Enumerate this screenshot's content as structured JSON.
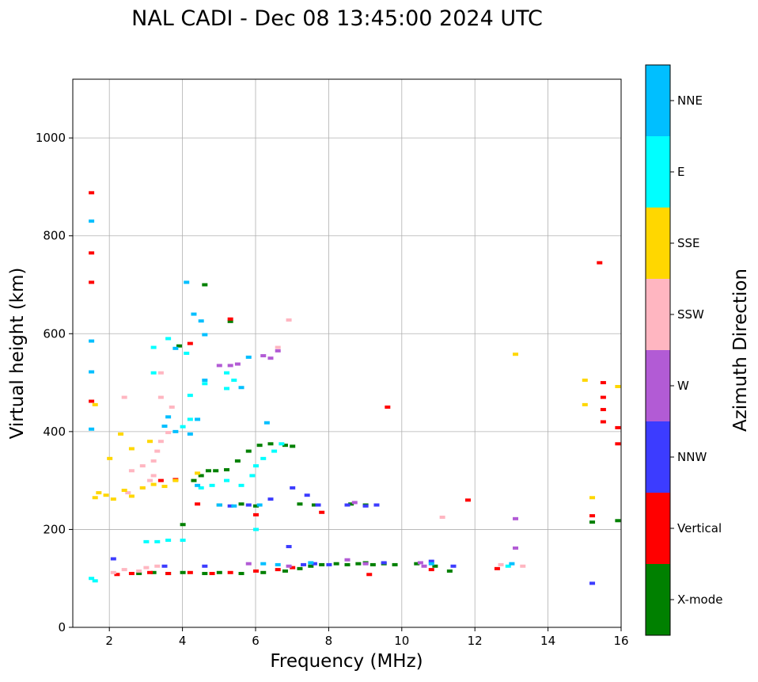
{
  "chart_data": {
    "type": "scatter",
    "title": "NAL CADI - Dec 08 13:45:00 2024 UTC",
    "xlabel": "Frequency (MHz)",
    "ylabel": "Virtual height (km)",
    "xlim": [
      1,
      16
    ],
    "ylim": [
      0,
      1120
    ],
    "xticks": [
      2,
      4,
      6,
      8,
      10,
      12,
      14,
      16
    ],
    "yticks": [
      0,
      200,
      400,
      600,
      800,
      1000
    ],
    "grid": true,
    "colorbar": {
      "label": "Azimuth Direction",
      "categories": [
        {
          "name": "X-mode",
          "color": "#008000"
        },
        {
          "name": "Vertical",
          "color": "#ff0000"
        },
        {
          "name": "NNW",
          "color": "#3c3cff"
        },
        {
          "name": "W",
          "color": "#b25bd5"
        },
        {
          "name": "SSW",
          "color": "#ffb6c1"
        },
        {
          "name": "SSE",
          "color": "#ffd700"
        },
        {
          "name": "E",
          "color": "#00ffff"
        },
        {
          "name": "NNE",
          "color": "#00bfff"
        }
      ]
    },
    "series": [
      {
        "name": "X-mode",
        "points": [
          [
            2.8,
            110
          ],
          [
            3.2,
            112
          ],
          [
            3.6,
            110
          ],
          [
            4.0,
            112
          ],
          [
            4.6,
            110
          ],
          [
            5.0,
            112
          ],
          [
            5.6,
            110
          ],
          [
            6.2,
            112
          ],
          [
            6.8,
            115
          ],
          [
            7.2,
            120
          ],
          [
            7.5,
            125
          ],
          [
            7.8,
            128
          ],
          [
            8.2,
            130
          ],
          [
            8.5,
            128
          ],
          [
            8.8,
            130
          ],
          [
            9.0,
            132
          ],
          [
            9.2,
            128
          ],
          [
            9.5,
            130
          ],
          [
            9.8,
            128
          ],
          [
            10.4,
            130
          ],
          [
            10.9,
            125
          ],
          [
            9.0,
            250
          ],
          [
            8.6,
            252
          ],
          [
            4.3,
            300
          ],
          [
            4.5,
            310
          ],
          [
            4.7,
            320
          ],
          [
            4.9,
            320
          ],
          [
            5.2,
            322
          ],
          [
            5.5,
            340
          ],
          [
            5.8,
            360
          ],
          [
            6.1,
            372
          ],
          [
            6.4,
            375
          ],
          [
            6.8,
            372
          ],
          [
            7.0,
            370
          ],
          [
            5.3,
            625
          ],
          [
            3.9,
            575
          ],
          [
            4.6,
            700
          ],
          [
            4.0,
            210
          ],
          [
            15.2,
            215
          ],
          [
            15.9,
            218
          ],
          [
            5.0,
            250
          ],
          [
            5.6,
            252
          ],
          [
            6.0,
            248
          ],
          [
            7.2,
            252
          ],
          [
            7.6,
            250
          ],
          [
            11.3,
            115
          ]
        ]
      },
      {
        "name": "Vertical",
        "points": [
          [
            1.5,
            888
          ],
          [
            1.5,
            765
          ],
          [
            1.5,
            705
          ],
          [
            1.5,
            462
          ],
          [
            2.2,
            108
          ],
          [
            2.6,
            110
          ],
          [
            3.1,
            112
          ],
          [
            3.6,
            110
          ],
          [
            4.2,
            112
          ],
          [
            4.8,
            110
          ],
          [
            5.3,
            112
          ],
          [
            6.0,
            115
          ],
          [
            6.6,
            118
          ],
          [
            7.0,
            122
          ],
          [
            9.1,
            108
          ],
          [
            10.8,
            118
          ],
          [
            12.6,
            120
          ],
          [
            15.2,
            228
          ],
          [
            15.5,
            500
          ],
          [
            15.5,
            470
          ],
          [
            15.5,
            445
          ],
          [
            15.5,
            420
          ],
          [
            15.4,
            745
          ],
          [
            15.9,
            408
          ],
          [
            15.9,
            375
          ],
          [
            11.8,
            260
          ],
          [
            9.6,
            450
          ],
          [
            5.3,
            630
          ],
          [
            4.2,
            580
          ],
          [
            3.8,
            302
          ],
          [
            3.4,
            300
          ],
          [
            6.0,
            230
          ],
          [
            7.8,
            235
          ],
          [
            4.4,
            252
          ]
        ]
      },
      {
        "name": "NNW",
        "points": [
          [
            7.3,
            128
          ],
          [
            7.6,
            130
          ],
          [
            8.0,
            128
          ],
          [
            9.5,
            132
          ],
          [
            10.8,
            135
          ],
          [
            11.4,
            125
          ],
          [
            7.0,
            285
          ],
          [
            7.4,
            270
          ],
          [
            7.7,
            250
          ],
          [
            8.5,
            250
          ],
          [
            9.0,
            248
          ],
          [
            9.3,
            250
          ],
          [
            6.4,
            262
          ],
          [
            5.8,
            250
          ],
          [
            5.3,
            248
          ],
          [
            6.9,
            165
          ],
          [
            15.2,
            90
          ],
          [
            3.5,
            125
          ],
          [
            4.6,
            125
          ],
          [
            2.1,
            140
          ]
        ]
      },
      {
        "name": "W",
        "points": [
          [
            5.0,
            535
          ],
          [
            5.3,
            535
          ],
          [
            5.5,
            538
          ],
          [
            6.4,
            550
          ],
          [
            6.6,
            565
          ],
          [
            6.2,
            555
          ],
          [
            6.9,
            125
          ],
          [
            8.5,
            138
          ],
          [
            9.0,
            130
          ],
          [
            10.5,
            132
          ],
          [
            13.1,
            222
          ],
          [
            13.1,
            162
          ],
          [
            8.7,
            255
          ],
          [
            10.6,
            125
          ],
          [
            5.8,
            130
          ]
        ]
      },
      {
        "name": "SSW",
        "points": [
          [
            2.1,
            112
          ],
          [
            2.4,
            118
          ],
          [
            2.8,
            115
          ],
          [
            3.0,
            122
          ],
          [
            3.3,
            125
          ],
          [
            2.5,
            275
          ],
          [
            2.9,
            285
          ],
          [
            3.1,
            300
          ],
          [
            3.2,
            340
          ],
          [
            3.3,
            360
          ],
          [
            3.4,
            380
          ],
          [
            3.6,
            398
          ],
          [
            3.4,
            470
          ],
          [
            3.4,
            520
          ],
          [
            3.7,
            450
          ],
          [
            2.6,
            320
          ],
          [
            2.9,
            330
          ],
          [
            3.2,
            310
          ],
          [
            6.9,
            628
          ],
          [
            11.1,
            225
          ],
          [
            12.7,
            128
          ],
          [
            13.3,
            125
          ],
          [
            2.4,
            470
          ],
          [
            6.6,
            572
          ]
        ]
      },
      {
        "name": "SSE",
        "points": [
          [
            1.6,
            265
          ],
          [
            1.7,
            275
          ],
          [
            1.9,
            270
          ],
          [
            2.1,
            262
          ],
          [
            2.4,
            280
          ],
          [
            2.6,
            268
          ],
          [
            2.9,
            285
          ],
          [
            3.2,
            292
          ],
          [
            3.5,
            288
          ],
          [
            3.8,
            300
          ],
          [
            2.3,
            395
          ],
          [
            2.6,
            365
          ],
          [
            3.1,
            380
          ],
          [
            2.0,
            345
          ],
          [
            15.2,
            265
          ],
          [
            15.0,
            505
          ],
          [
            15.0,
            455
          ],
          [
            15.9,
            492
          ],
          [
            13.1,
            558
          ],
          [
            1.6,
            455
          ],
          [
            4.4,
            315
          ]
        ]
      },
      {
        "name": "E",
        "points": [
          [
            3.0,
            175
          ],
          [
            3.3,
            175
          ],
          [
            3.6,
            178
          ],
          [
            4.0,
            178
          ],
          [
            3.2,
            572
          ],
          [
            3.6,
            590
          ],
          [
            4.1,
            560
          ],
          [
            4.2,
            474
          ],
          [
            4.6,
            498
          ],
          [
            5.2,
            488
          ],
          [
            5.4,
            505
          ],
          [
            4.0,
            410
          ],
          [
            4.2,
            425
          ],
          [
            5.6,
            290
          ],
          [
            5.9,
            310
          ],
          [
            6.0,
            330
          ],
          [
            6.2,
            345
          ],
          [
            5.2,
            300
          ],
          [
            4.8,
            290
          ],
          [
            6.5,
            360
          ],
          [
            6.7,
            375
          ],
          [
            12.9,
            125
          ],
          [
            4.5,
            285
          ],
          [
            6.0,
            200
          ],
          [
            5.2,
            520
          ],
          [
            3.2,
            520
          ],
          [
            1.5,
            100
          ],
          [
            1.6,
            95
          ]
        ]
      },
      {
        "name": "NNE",
        "points": [
          [
            1.5,
            585
          ],
          [
            1.5,
            522
          ],
          [
            1.5,
            405
          ],
          [
            1.5,
            830
          ],
          [
            4.1,
            705
          ],
          [
            4.3,
            640
          ],
          [
            4.5,
            626
          ],
          [
            4.6,
            598
          ],
          [
            3.8,
            570
          ],
          [
            5.6,
            490
          ],
          [
            4.6,
            505
          ],
          [
            3.5,
            411
          ],
          [
            3.8,
            400
          ],
          [
            4.2,
            395
          ],
          [
            4.4,
            425
          ],
          [
            5.0,
            250
          ],
          [
            5.4,
            248
          ],
          [
            6.1,
            250
          ],
          [
            6.3,
            418
          ],
          [
            6.2,
            130
          ],
          [
            6.6,
            128
          ],
          [
            7.5,
            132
          ],
          [
            10.8,
            130
          ],
          [
            13.0,
            130
          ],
          [
            5.8,
            552
          ],
          [
            3.6,
            430
          ],
          [
            4.4,
            290
          ]
        ]
      }
    ]
  }
}
